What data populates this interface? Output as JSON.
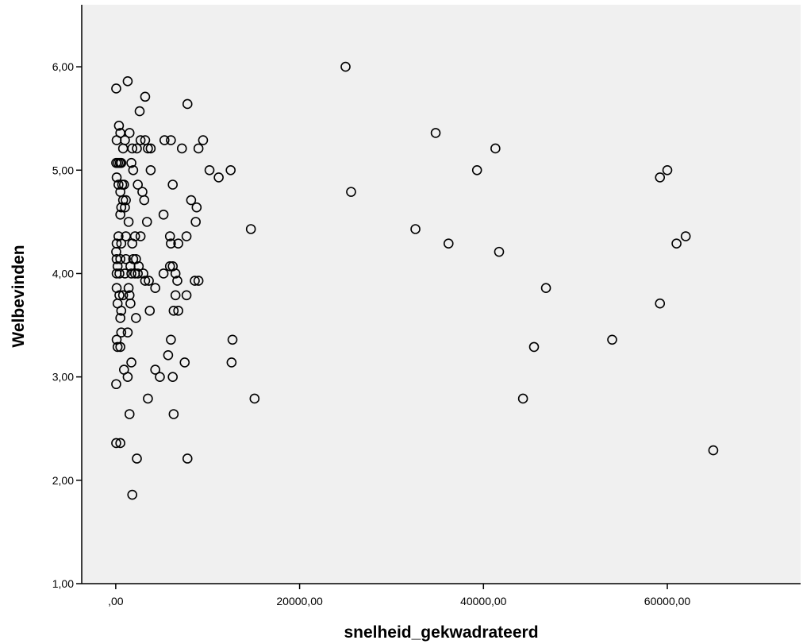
{
  "chart_data": {
    "type": "scatter",
    "title": "",
    "xlabel": "snelheid_gekwadrateerd",
    "ylabel": "Welbevinden",
    "xlim": [
      -3700,
      74500
    ],
    "ylim": [
      1.0,
      6.6
    ],
    "x_ticks": [
      0,
      20000,
      40000,
      60000
    ],
    "x_tick_labels": [
      ",00",
      "20000,00",
      "40000,00",
      "60000,00"
    ],
    "y_ticks": [
      1,
      2,
      3,
      4,
      5,
      6
    ],
    "y_tick_labels": [
      "1,00",
      "2,00",
      "3,00",
      "4,00",
      "5,00",
      "6,00"
    ],
    "grid": false,
    "legend": "none",
    "marker": "open-circle",
    "colors": {
      "plot_background": "#f0f0f0",
      "marker_stroke": "#000000",
      "axis": "#000000"
    },
    "points": [
      [
        25000,
        6.0
      ],
      [
        1300,
        5.86
      ],
      [
        50,
        5.79
      ],
      [
        3200,
        5.71
      ],
      [
        7800,
        5.64
      ],
      [
        2600,
        5.57
      ],
      [
        34800,
        5.36
      ],
      [
        41300,
        5.21
      ],
      [
        100,
        5.29
      ],
      [
        350,
        5.43
      ],
      [
        500,
        5.36
      ],
      [
        1000,
        5.29
      ],
      [
        1500,
        5.36
      ],
      [
        800,
        5.21
      ],
      [
        1800,
        5.21
      ],
      [
        2300,
        5.21
      ],
      [
        2700,
        5.29
      ],
      [
        3200,
        5.29
      ],
      [
        3500,
        5.21
      ],
      [
        3800,
        5.21
      ],
      [
        5300,
        5.29
      ],
      [
        6000,
        5.29
      ],
      [
        7200,
        5.21
      ],
      [
        9000,
        5.21
      ],
      [
        9500,
        5.29
      ],
      [
        50,
        5.07
      ],
      [
        250,
        5.07
      ],
      [
        450,
        5.07
      ],
      [
        600,
        5.07
      ],
      [
        1700,
        5.07
      ],
      [
        1900,
        5.0
      ],
      [
        3800,
        5.0
      ],
      [
        10200,
        5.0
      ],
      [
        11200,
        4.93
      ],
      [
        12500,
        5.0
      ],
      [
        39300,
        5.0
      ],
      [
        59200,
        4.93
      ],
      [
        60000,
        5.0
      ],
      [
        100,
        4.93
      ],
      [
        300,
        4.86
      ],
      [
        700,
        4.86
      ],
      [
        900,
        4.86
      ],
      [
        2400,
        4.86
      ],
      [
        6200,
        4.86
      ],
      [
        25600,
        4.79
      ],
      [
        500,
        4.79
      ],
      [
        800,
        4.71
      ],
      [
        1100,
        4.71
      ],
      [
        2900,
        4.79
      ],
      [
        3100,
        4.71
      ],
      [
        8200,
        4.71
      ],
      [
        8800,
        4.64
      ],
      [
        600,
        4.64
      ],
      [
        1000,
        4.64
      ],
      [
        500,
        4.57
      ],
      [
        5200,
        4.57
      ],
      [
        1400,
        4.5
      ],
      [
        3400,
        4.5
      ],
      [
        8700,
        4.5
      ],
      [
        14700,
        4.43
      ],
      [
        32600,
        4.43
      ],
      [
        300,
        4.36
      ],
      [
        1100,
        4.36
      ],
      [
        2100,
        4.36
      ],
      [
        2700,
        4.36
      ],
      [
        5900,
        4.36
      ],
      [
        7700,
        4.36
      ],
      [
        62000,
        4.36
      ],
      [
        61000,
        4.29
      ],
      [
        36200,
        4.29
      ],
      [
        100,
        4.29
      ],
      [
        600,
        4.29
      ],
      [
        1800,
        4.29
      ],
      [
        6000,
        4.29
      ],
      [
        6800,
        4.29
      ],
      [
        41700,
        4.21
      ],
      [
        50,
        4.21
      ],
      [
        100,
        4.14
      ],
      [
        200,
        4.07
      ],
      [
        500,
        4.14
      ],
      [
        1100,
        4.14
      ],
      [
        1600,
        4.07
      ],
      [
        1900,
        4.14
      ],
      [
        2200,
        4.14
      ],
      [
        2500,
        4.07
      ],
      [
        5900,
        4.07
      ],
      [
        6200,
        4.07
      ],
      [
        100,
        4.0
      ],
      [
        400,
        4.0
      ],
      [
        1000,
        4.0
      ],
      [
        1700,
        4.0
      ],
      [
        2100,
        4.0
      ],
      [
        2400,
        4.0
      ],
      [
        3000,
        4.0
      ],
      [
        5200,
        4.0
      ],
      [
        6500,
        4.0
      ],
      [
        3200,
        3.93
      ],
      [
        3600,
        3.93
      ],
      [
        6700,
        3.93
      ],
      [
        8600,
        3.93
      ],
      [
        9000,
        3.93
      ],
      [
        100,
        3.86
      ],
      [
        4300,
        3.86
      ],
      [
        46800,
        3.86
      ],
      [
        1400,
        3.86
      ],
      [
        400,
        3.79
      ],
      [
        800,
        3.79
      ],
      [
        1500,
        3.79
      ],
      [
        6500,
        3.79
      ],
      [
        7700,
        3.79
      ],
      [
        59200,
        3.71
      ],
      [
        200,
        3.71
      ],
      [
        1600,
        3.71
      ],
      [
        600,
        3.64
      ],
      [
        3700,
        3.64
      ],
      [
        6300,
        3.64
      ],
      [
        6800,
        3.64
      ],
      [
        500,
        3.57
      ],
      [
        2200,
        3.57
      ],
      [
        600,
        3.43
      ],
      [
        1300,
        3.43
      ],
      [
        100,
        3.36
      ],
      [
        6000,
        3.36
      ],
      [
        12700,
        3.36
      ],
      [
        54000,
        3.36
      ],
      [
        200,
        3.29
      ],
      [
        500,
        3.29
      ],
      [
        45500,
        3.29
      ],
      [
        5700,
        3.21
      ],
      [
        1700,
        3.14
      ],
      [
        7500,
        3.14
      ],
      [
        12600,
        3.14
      ],
      [
        900,
        3.07
      ],
      [
        4300,
        3.07
      ],
      [
        1300,
        3.0
      ],
      [
        4800,
        3.0
      ],
      [
        6200,
        3.0
      ],
      [
        50,
        2.93
      ],
      [
        3500,
        2.79
      ],
      [
        15100,
        2.79
      ],
      [
        44300,
        2.79
      ],
      [
        1500,
        2.64
      ],
      [
        6300,
        2.64
      ],
      [
        50,
        2.36
      ],
      [
        500,
        2.36
      ],
      [
        65000,
        2.29
      ],
      [
        2300,
        2.21
      ],
      [
        7800,
        2.21
      ],
      [
        1800,
        1.86
      ]
    ]
  }
}
